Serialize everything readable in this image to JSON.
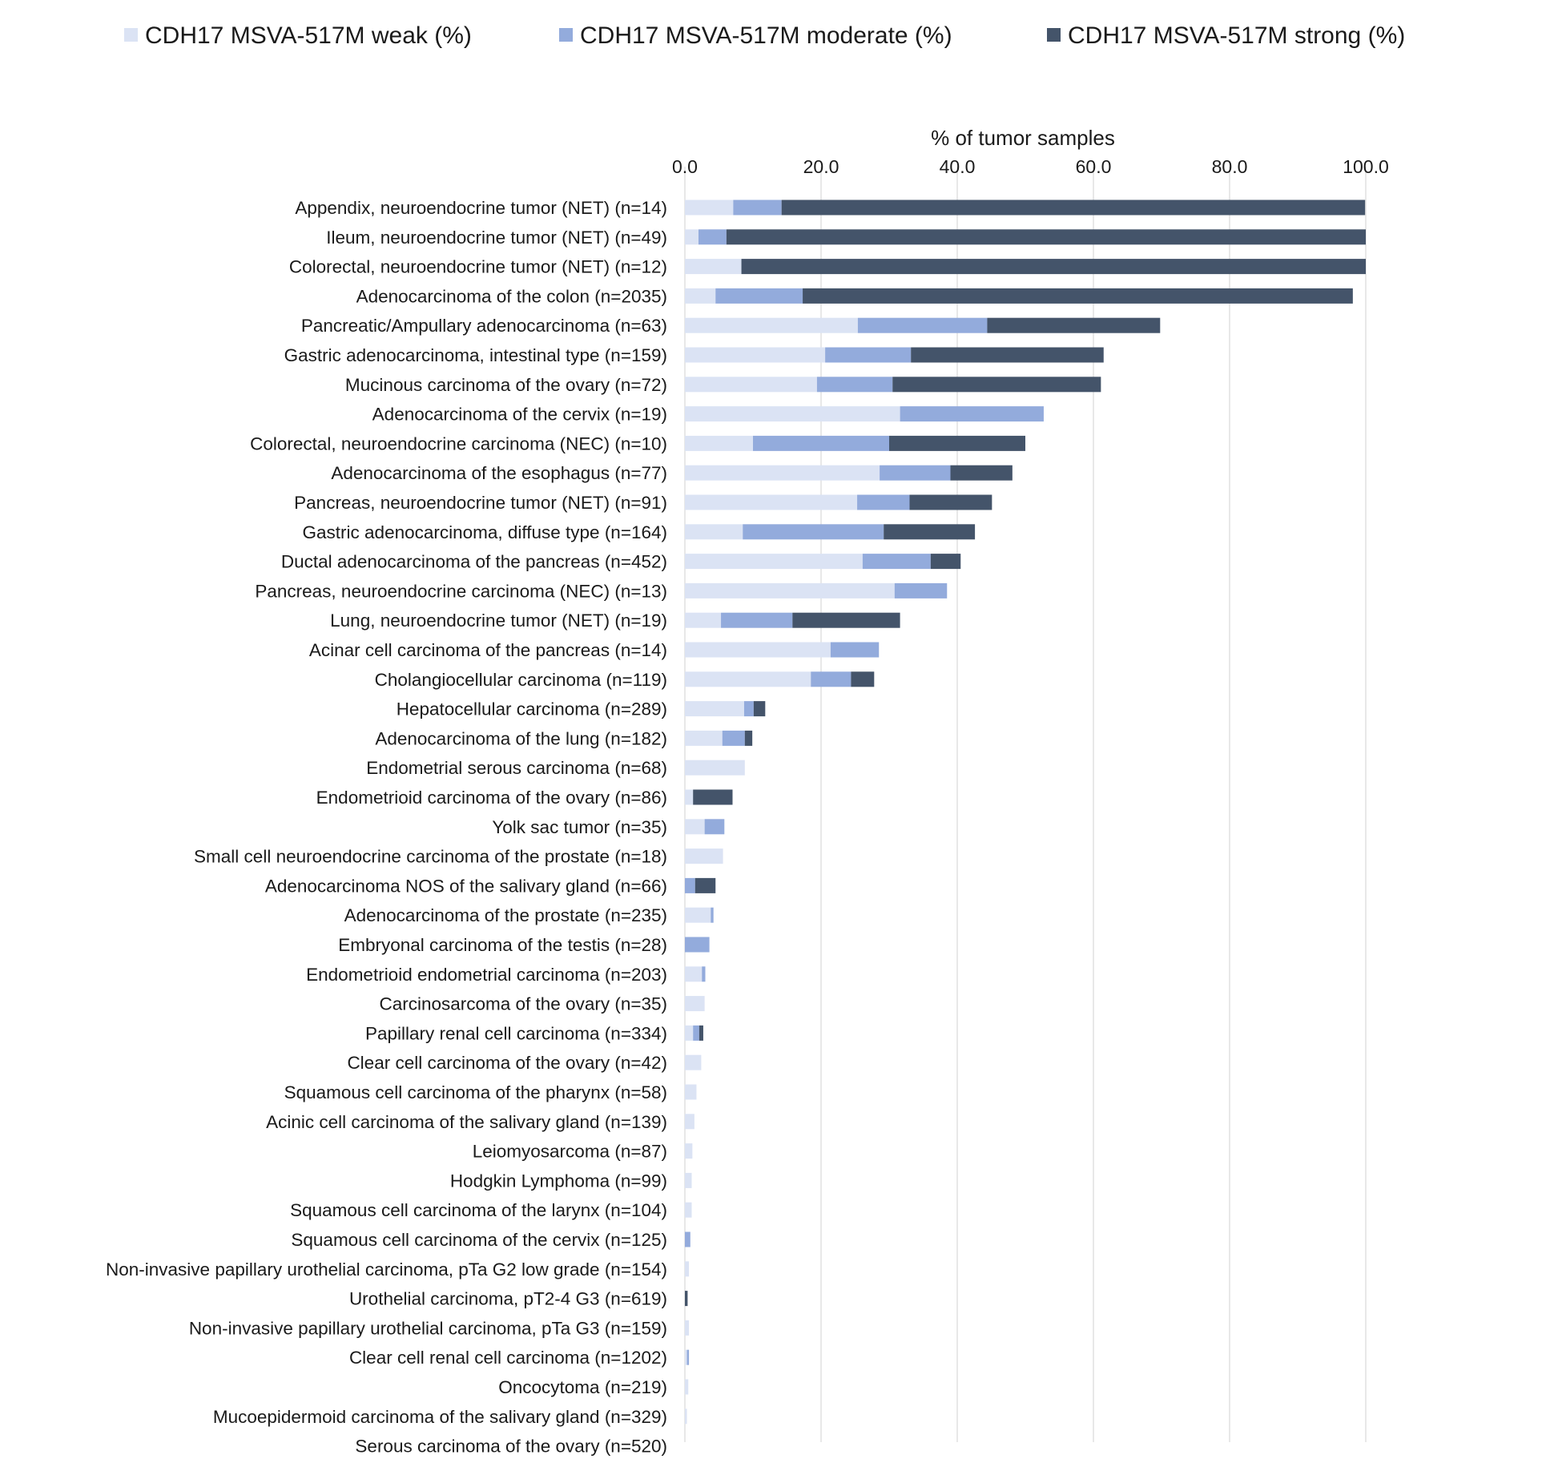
{
  "chart_data": {
    "type": "bar",
    "orientation": "horizontal",
    "stacked": true,
    "xlabel": "% of tumor samples",
    "ylabel": "",
    "xlim": [
      0,
      100
    ],
    "x_ticks": [
      "0.0",
      "20.0",
      "40.0",
      "60.0",
      "80.0",
      "100.0"
    ],
    "x_tick_values": [
      0,
      20,
      40,
      60,
      80,
      100
    ],
    "x_axis_position": "top",
    "grid": "vertical",
    "legend_position": "top",
    "series": [
      {
        "name": "CDH17 MSVA-517M weak (%)",
        "color": "#dbe3f4",
        "values": [
          7.1,
          2.0,
          8.3,
          4.5,
          25.4,
          20.6,
          19.4,
          31.6,
          10.0,
          28.6,
          25.3,
          8.5,
          26.1,
          30.8,
          5.3,
          21.4,
          18.5,
          8.7,
          5.5,
          8.8,
          1.2,
          2.9,
          5.6,
          0.0,
          3.8,
          0.0,
          2.5,
          2.9,
          1.2,
          2.4,
          1.7,
          1.4,
          1.1,
          1.0,
          1.0,
          0.0,
          0.6,
          0.0,
          0.6,
          0.3,
          0.5,
          0.3,
          0.0
        ]
      },
      {
        "name": "CDH17 MSVA-517M moderate (%)",
        "color": "#93abdc",
        "values": [
          7.1,
          4.1,
          0.0,
          12.8,
          19.0,
          12.6,
          11.1,
          21.1,
          20.0,
          10.4,
          7.7,
          20.7,
          10.0,
          7.7,
          10.5,
          7.1,
          5.9,
          1.4,
          3.3,
          0.0,
          0.0,
          2.9,
          0.0,
          1.5,
          0.4,
          3.6,
          0.5,
          0.0,
          0.9,
          0.0,
          0.0,
          0.0,
          0.0,
          0.0,
          0.0,
          0.8,
          0.0,
          0.0,
          0.0,
          0.3,
          0.0,
          0.0,
          0.0
        ]
      },
      {
        "name": "CDH17 MSVA-517M strong (%)",
        "color": "#44546a",
        "values": [
          85.7,
          93.9,
          91.7,
          80.8,
          25.4,
          28.3,
          30.6,
          0.0,
          20.0,
          9.1,
          12.1,
          13.4,
          4.4,
          0.0,
          15.8,
          0.0,
          3.4,
          1.7,
          1.1,
          0.0,
          5.8,
          0.0,
          0.0,
          3.0,
          0.0,
          0.0,
          0.0,
          0.0,
          0.6,
          0.0,
          0.0,
          0.0,
          0.0,
          0.0,
          0.0,
          0.0,
          0.0,
          0.4,
          0.0,
          0.0,
          0.0,
          0.0,
          0.0
        ]
      }
    ],
    "categories": [
      "Appendix, neuroendocrine tumor (NET) (n=14)",
      "Ileum, neuroendocrine tumor (NET) (n=49)",
      "Colorectal, neuroendocrine tumor (NET) (n=12)",
      "Adenocarcinoma of the colon (n=2035)",
      "Pancreatic/Ampullary adenocarcinoma (n=63)",
      "Gastric adenocarcinoma, intestinal type (n=159)",
      "Mucinous carcinoma of the ovary (n=72)",
      "Adenocarcinoma of the cervix (n=19)",
      "Colorectal, neuroendocrine carcinoma (NEC) (n=10)",
      "Adenocarcinoma of the esophagus (n=77)",
      "Pancreas, neuroendocrine tumor (NET) (n=91)",
      "Gastric adenocarcinoma, diffuse type (n=164)",
      "Ductal adenocarcinoma of the pancreas (n=452)",
      "Pancreas, neuroendocrine carcinoma (NEC) (n=13)",
      "Lung, neuroendocrine tumor (NET) (n=19)",
      "Acinar cell carcinoma of the pancreas (n=14)",
      "Cholangiocellular carcinoma (n=119)",
      "Hepatocellular carcinoma (n=289)",
      "Adenocarcinoma of the lung (n=182)",
      "Endometrial serous carcinoma (n=68)",
      "Endometrioid carcinoma of the ovary (n=86)",
      "Yolk sac tumor (n=35)",
      "Small cell neuroendocrine carcinoma of the prostate (n=18)",
      "Adenocarcinoma NOS of the salivary gland (n=66)",
      "Adenocarcinoma of the prostate (n=235)",
      "Embryonal carcinoma of the testis (n=28)",
      "Endometrioid endometrial carcinoma (n=203)",
      "Carcinosarcoma of the ovary (n=35)",
      "Papillary renal cell carcinoma (n=334)",
      "Clear cell carcinoma of the ovary (n=42)",
      "Squamous cell carcinoma of the pharynx (n=58)",
      "Acinic cell carcinoma of the salivary gland (n=139)",
      "Leiomyosarcoma (n=87)",
      "Hodgkin Lymphoma (n=99)",
      "Squamous cell carcinoma of the larynx (n=104)",
      "Squamous cell carcinoma of the cervix (n=125)",
      "Non-invasive papillary urothelial carcinoma, pTa G2 low grade (n=154)",
      "Urothelial carcinoma, pT2-4 G3 (n=619)",
      "Non-invasive papillary urothelial carcinoma, pTa G3 (n=159)",
      "Clear cell renal cell carcinoma (n=1202)",
      "Oncocytoma (n=219)",
      "Mucoepidermoid carcinoma of the salivary gland (n=329)",
      "Serous carcinoma of the ovary (n=520)"
    ]
  }
}
